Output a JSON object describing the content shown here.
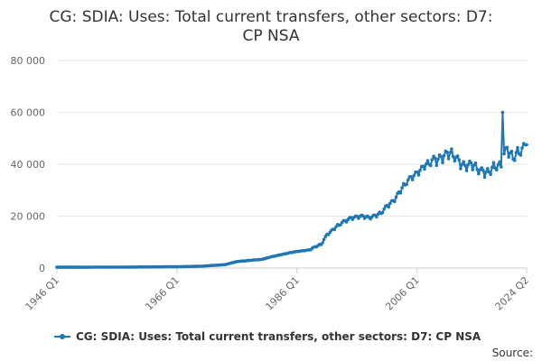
{
  "chart_data": {
    "type": "line",
    "title_lines": [
      "CG: SDIA: Uses: Total current transfers, other sectors: D7:",
      "CP NSA"
    ],
    "xlabel": "",
    "ylabel": "",
    "x_range": [
      "1946 Q1",
      "2024 Q2"
    ],
    "x_tick_labels": [
      "1946 Q1",
      "1966 Q1",
      "1986 Q1",
      "2006 Q1",
      "2024 Q2"
    ],
    "ylim": [
      0,
      80000
    ],
    "y_tick_labels": [
      "0",
      "20 000",
      "40 000",
      "60 000",
      "80 000"
    ],
    "grid": "horizontal",
    "legend_position": "bottom",
    "source_label": "Source:",
    "series": [
      {
        "name": "CG: SDIA: Uses: Total current transfers, other sectors: D7: CP NSA",
        "color": "#1f77b4",
        "marker": "circle",
        "keypoints": [
          [
            "1946 Q1",
            300
          ],
          [
            "1956 Q1",
            350
          ],
          [
            "1966 Q1",
            500
          ],
          [
            "1970 Q1",
            700
          ],
          [
            "1974 Q1",
            1300
          ],
          [
            "1976 Q1",
            2500
          ],
          [
            "1980 Q1",
            3300
          ],
          [
            "1983 Q1",
            5000
          ],
          [
            "1985 Q1",
            6000
          ],
          [
            "1988 Q1",
            7000
          ],
          [
            "1990 Q1",
            9000
          ],
          [
            "1991 Q1",
            13000
          ],
          [
            "1993 Q1",
            16500
          ],
          [
            "1995 Q1",
            19500
          ],
          [
            "1998 Q1",
            19500
          ],
          [
            "2000 Q1",
            21000
          ],
          [
            "2002 Q1",
            26000
          ],
          [
            "2004 Q1",
            32000
          ],
          [
            "2006 Q1",
            37000
          ],
          [
            "2008 Q1",
            40000
          ],
          [
            "2010 Q1",
            43000
          ],
          [
            "2012 Q1",
            43000
          ],
          [
            "2014 Q1",
            39500
          ],
          [
            "2016 Q1",
            38000
          ],
          [
            "2018 Q1",
            37000
          ],
          [
            "2019 Q1",
            38500
          ],
          [
            "2020 Q1",
            39000
          ],
          [
            "2020 Q2",
            60000
          ],
          [
            "2020 Q3",
            44000
          ],
          [
            "2021 Q1",
            46500
          ],
          [
            "2022 Q1",
            42000
          ],
          [
            "2023 Q1",
            44000
          ],
          [
            "2024 Q2",
            47500
          ]
        ]
      }
    ]
  }
}
